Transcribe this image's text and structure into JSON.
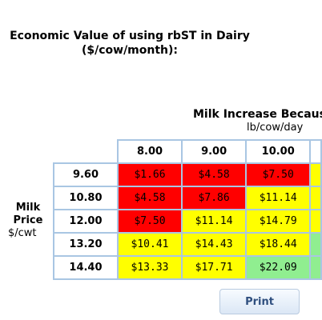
{
  "title_line1": "Economic Value of using rbST in Dairy",
  "title_line2": "($/cow/month):",
  "column_axis": {
    "label": "Milk Increase Becaus",
    "unit": "lb/cow/day"
  },
  "row_axis": {
    "label_line1": "Milk",
    "label_line2": "Price",
    "unit": "$/cwt"
  },
  "columns": [
    "8.00",
    "9.00",
    "10.00"
  ],
  "rows": [
    {
      "price": "9.60",
      "cells": [
        {
          "value": "$1.66",
          "color": "#ff0000"
        },
        {
          "value": "$4.58",
          "color": "#ff0000"
        },
        {
          "value": "$7.50",
          "color": "#ff0000"
        }
      ],
      "edge_color": "#ffff00"
    },
    {
      "price": "10.80",
      "cells": [
        {
          "value": "$4.58",
          "color": "#ff0000"
        },
        {
          "value": "$7.86",
          "color": "#ff0000"
        },
        {
          "value": "$11.14",
          "color": "#ffff00"
        }
      ],
      "edge_color": "#ffff00"
    },
    {
      "price": "12.00",
      "cells": [
        {
          "value": "$7.50",
          "color": "#ff0000"
        },
        {
          "value": "$11.14",
          "color": "#ffff00"
        },
        {
          "value": "$14.79",
          "color": "#ffff00"
        }
      ],
      "edge_color": "#ffff00"
    },
    {
      "price": "13.20",
      "cells": [
        {
          "value": "$10.41",
          "color": "#ffff00"
        },
        {
          "value": "$14.43",
          "color": "#ffff00"
        },
        {
          "value": "$18.44",
          "color": "#ffff00"
        }
      ],
      "edge_color": "#90ee90"
    },
    {
      "price": "14.40",
      "cells": [
        {
          "value": "$13.33",
          "color": "#ffff00"
        },
        {
          "value": "$17.71",
          "color": "#ffff00"
        },
        {
          "value": "$22.09",
          "color": "#90ee90"
        }
      ],
      "edge_color": "#90ee90"
    }
  ],
  "print_button": "Print"
}
